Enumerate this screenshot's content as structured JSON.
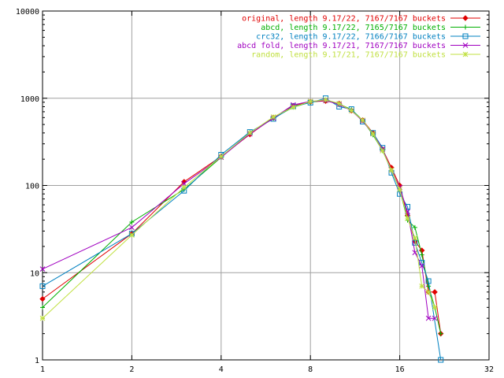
{
  "chart_data": {
    "type": "line",
    "title": "",
    "xlabel": "",
    "ylabel": "",
    "x_scale": "log2",
    "y_scale": "log10",
    "xlim": [
      1,
      32
    ],
    "ylim": [
      1,
      10000
    ],
    "x_ticks": [
      1,
      2,
      4,
      8,
      16,
      32
    ],
    "x_tick_labels": [
      "1",
      "2",
      "4",
      "8",
      "16",
      "32"
    ],
    "y_ticks": [
      1,
      10,
      100,
      1000,
      10000
    ],
    "y_tick_labels": [
      "1",
      "10",
      "100",
      "1000",
      "10000"
    ],
    "grid": true,
    "legend_position": "top-right",
    "series": [
      {
        "name": "original, length 9.17/22, 7167/7167 buckets",
        "color": "#e00000",
        "marker": "diamond",
        "points": [
          [
            1,
            5
          ],
          [
            2,
            28
          ],
          [
            3,
            110
          ],
          [
            4,
            215
          ],
          [
            5,
            385
          ],
          [
            6,
            600
          ],
          [
            7,
            820
          ],
          [
            8,
            910
          ],
          [
            9,
            930
          ],
          [
            10,
            870
          ],
          [
            11,
            720
          ],
          [
            12,
            560
          ],
          [
            13,
            400
          ],
          [
            14,
            260
          ],
          [
            15,
            160
          ],
          [
            16,
            100
          ],
          [
            17,
            45
          ],
          [
            18,
            23
          ],
          [
            19,
            18
          ],
          [
            20,
            6
          ],
          [
            21,
            6
          ],
          [
            22,
            2
          ]
        ]
      },
      {
        "name": "abcd, length 9.17/22, 7165/7167 buckets",
        "color": "#00b000",
        "marker": "plus",
        "points": [
          [
            1,
            4
          ],
          [
            2,
            38
          ],
          [
            3,
            90
          ],
          [
            4,
            210
          ],
          [
            5,
            405
          ],
          [
            6,
            590
          ],
          [
            7,
            790
          ],
          [
            8,
            900
          ],
          [
            9,
            950
          ],
          [
            10,
            860
          ],
          [
            11,
            740
          ],
          [
            12,
            560
          ],
          [
            13,
            380
          ],
          [
            14,
            250
          ],
          [
            15,
            150
          ],
          [
            16,
            90
          ],
          [
            17,
            40
          ],
          [
            18,
            33
          ],
          [
            19,
            16
          ],
          [
            20,
            7
          ],
          [
            21,
            4
          ],
          [
            22,
            2
          ]
        ]
      },
      {
        "name": "crc32, length 9.17/22, 7166/7167 buckets",
        "color": "#0080c0",
        "marker": "square",
        "points": [
          [
            1,
            7
          ],
          [
            2,
            28
          ],
          [
            3,
            87
          ],
          [
            4,
            225
          ],
          [
            5,
            410
          ],
          [
            6,
            580
          ],
          [
            7,
            810
          ],
          [
            8,
            890
          ],
          [
            9,
            1000
          ],
          [
            10,
            800
          ],
          [
            11,
            750
          ],
          [
            12,
            540
          ],
          [
            13,
            400
          ],
          [
            14,
            270
          ],
          [
            15,
            140
          ],
          [
            16,
            80
          ],
          [
            17,
            57
          ],
          [
            18,
            22
          ],
          [
            19,
            13
          ],
          [
            20,
            8
          ],
          [
            22,
            1
          ]
        ]
      },
      {
        "name": "abcd fold, length 9.17/21, 7167/7167 buckets",
        "color": "#a000c0",
        "marker": "cross",
        "points": [
          [
            1,
            11
          ],
          [
            2,
            33
          ],
          [
            3,
            105
          ],
          [
            4,
            210
          ],
          [
            5,
            390
          ],
          [
            6,
            590
          ],
          [
            7,
            840
          ],
          [
            8,
            920
          ],
          [
            9,
            940
          ],
          [
            10,
            850
          ],
          [
            11,
            720
          ],
          [
            12,
            550
          ],
          [
            13,
            390
          ],
          [
            14,
            260
          ],
          [
            15,
            150
          ],
          [
            16,
            95
          ],
          [
            17,
            50
          ],
          [
            18,
            17
          ],
          [
            19,
            12
          ],
          [
            20,
            3
          ],
          [
            21,
            3
          ]
        ]
      },
      {
        "name": "random, length 9.17/21, 7167/7167 buckets",
        "color": "#c0e040",
        "marker": "star",
        "points": [
          [
            1,
            3
          ],
          [
            2,
            27
          ],
          [
            3,
            95
          ],
          [
            4,
            215
          ],
          [
            5,
            400
          ],
          [
            6,
            610
          ],
          [
            7,
            790
          ],
          [
            8,
            920
          ],
          [
            9,
            960
          ],
          [
            10,
            870
          ],
          [
            11,
            720
          ],
          [
            12,
            560
          ],
          [
            13,
            390
          ],
          [
            14,
            250
          ],
          [
            15,
            150
          ],
          [
            16,
            90
          ],
          [
            17,
            42
          ],
          [
            18,
            25
          ],
          [
            19,
            7
          ],
          [
            20,
            6
          ],
          [
            21,
            4
          ]
        ]
      }
    ]
  }
}
